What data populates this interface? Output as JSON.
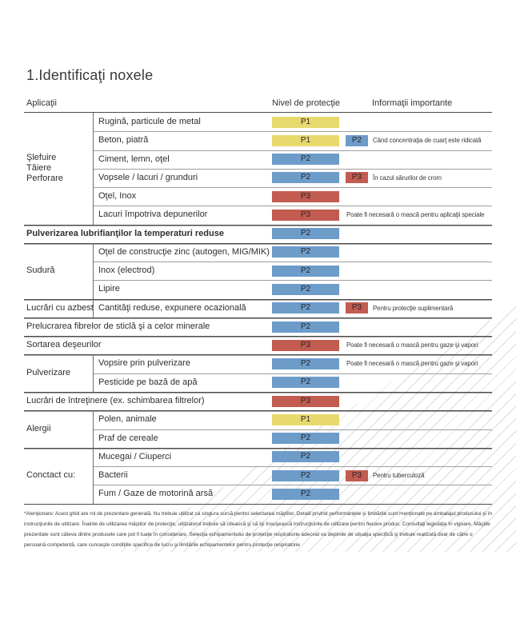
{
  "title": "1.Identificaţi noxele",
  "columns": {
    "applications": "Aplicaţii",
    "protection": "Nivel de protecţie",
    "info": "Informaţii importante"
  },
  "colors": {
    "P1": "#e8d96d",
    "P2": "#6d9cc9",
    "P3": "#c25b50"
  },
  "table": {
    "sections": [
      {
        "group": [
          "Şlefuire",
          "Tăiere",
          "Perforare"
        ],
        "rows": [
          {
            "label": "Rugină, particule de metal",
            "badge": "P1"
          },
          {
            "label": "Beton, piatră",
            "badge": "P1",
            "badge2": "P2",
            "info": "Când concentraţia de cuarţ este ridicată"
          },
          {
            "label": "Ciment, lemn, oţel",
            "badge": "P2"
          },
          {
            "label": "Vopsele / lacuri / grunduri",
            "badge": "P2",
            "badge2": "P3",
            "info": "În cazul sărurilor de crom"
          },
          {
            "label": "Oţel, Inox",
            "badge": "P3"
          },
          {
            "label": "Lacuri împotriva depunerilor",
            "badge": "P3",
            "info": "Poate fi necesară o mască pentru aplicaţii speciale"
          }
        ]
      },
      {
        "group": null,
        "bold": true,
        "rows": [
          {
            "label": "Pulverizarea lubrifianţilor la temperaturi reduse",
            "badge": "P2"
          }
        ]
      },
      {
        "group": [
          "Sudură"
        ],
        "rows": [
          {
            "label": "Oţel de construcţie zinc (autogen, MIG/MIK)",
            "badge": "P2"
          },
          {
            "label": "Inox (electrod)",
            "badge": "P2"
          },
          {
            "label": "Lipire",
            "badge": "P2"
          }
        ]
      },
      {
        "group": [
          "Lucrări cu azbest"
        ],
        "rows": [
          {
            "label": "Cantităţi reduse, expunere ocazională",
            "badge": "P2",
            "badge2": "P3",
            "info": "Pentru protecţie suplimentară"
          }
        ]
      },
      {
        "group": null,
        "rows": [
          {
            "label": "Prelucrarea fibrelor de sticlă şi a celor minerale",
            "badge": "P2"
          }
        ]
      },
      {
        "group": null,
        "rows": [
          {
            "label": "Sortarea deşeurilor",
            "badge": "P3",
            "info": "Poate fi necesară o mască pentru gaze şi vapori"
          }
        ]
      },
      {
        "group": [
          "Pulverizare"
        ],
        "rows": [
          {
            "label": "Vopsire prin pulverizare",
            "badge": "P2",
            "info": "Poate fi necesară o mască pentru gaze şi vapori"
          },
          {
            "label": "Pesticide pe bază de apă",
            "badge": "P2"
          }
        ]
      },
      {
        "group": null,
        "rows": [
          {
            "label": "Lucrări de întreţinere (ex. schimbarea filtrelor)",
            "badge": "P3"
          }
        ]
      },
      {
        "group": [
          "Alergii"
        ],
        "rows": [
          {
            "label": "Polen, animale",
            "badge": "P1"
          },
          {
            "label": "Praf de cereale",
            "badge": "P2"
          }
        ]
      },
      {
        "group": [
          "Conctact cu:"
        ],
        "rows": [
          {
            "label": "Mucegai / Ciuperci",
            "badge": "P2"
          },
          {
            "label": "Bacterii",
            "badge": "P2",
            "badge2": "P3",
            "info": "Pentru tuberculoză"
          },
          {
            "label": "Fum / Gaze de motorină arsă",
            "badge": "P2"
          }
        ]
      }
    ]
  },
  "footnote": "*Atenţionare: Acest ghid are rol de prezentare generală. Nu trebuie utilizat ca singura sursă pentru selectarea măştilor. Detalii privind performanţele şi limitările sunt menţionate pe ambalajul produsului şi în instrucţiunile de utilizare. Înainte de utilizarea măştilor de protecţie, utilizatorul trebuie să citească şi să îşi însuşească instrucţiunile de utilizare pentru fiecare produs. Consultaţi legislaţia în vigoare. Măştile prezentate sunt câteva dintre produsele care pot fi luate în considerare. Selecţia echipamentului de protecţie respiratorie adecvat va depinde de situaţia specifică şi trebuie realizată doar de către o persoană competentă, care cunoaşte condiţiile specifice de lucru şi limitările echipamentelor pentru protecţie respiratorie"
}
